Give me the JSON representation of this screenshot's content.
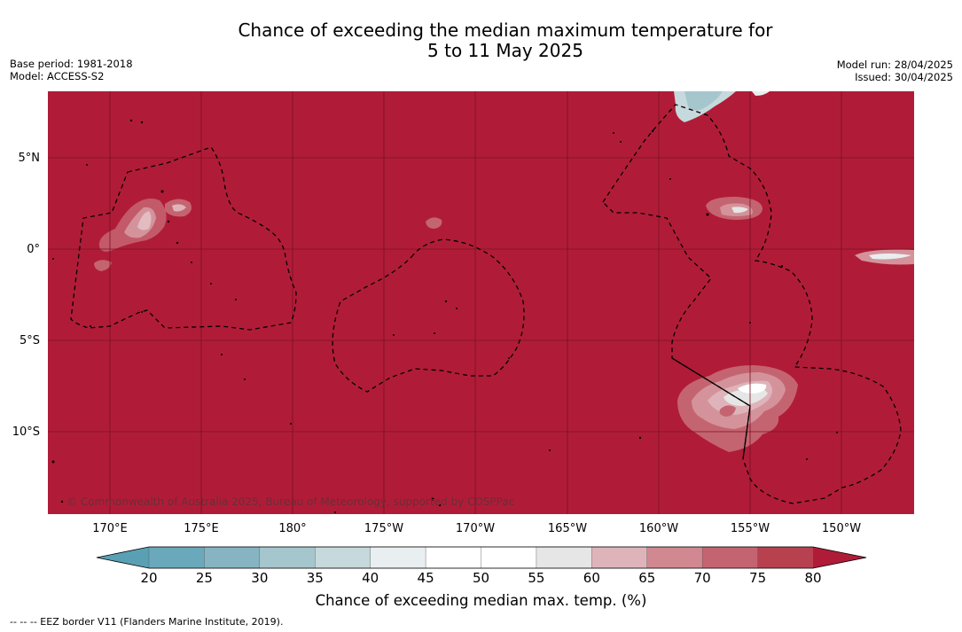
{
  "title_line1": "Chance of exceeding the median maximum temperature for",
  "title_line2": "5 to 11 May 2025",
  "meta_left": [
    "Base period: 1981-2018",
    "Model: ACCESS-S2"
  ],
  "meta_right": [
    "Model run: 28/04/2025",
    "Issued: 30/04/2025"
  ],
  "lon_labels": [
    "170°E",
    "175°E",
    "180°",
    "175°W",
    "170°W",
    "165°W",
    "160°W",
    "155°W",
    "150°W"
  ],
  "lat_labels": [
    "5°N",
    "0°",
    "5°S",
    "10°S"
  ],
  "credit": "© Commonwealth of Australia 2025, Bureau of Meteorology, supported by COSPPac",
  "colorbar": {
    "ticks": [
      "20",
      "25",
      "30",
      "35",
      "40",
      "45",
      "50",
      "55",
      "60",
      "65",
      "70",
      "75",
      "80"
    ],
    "colors": [
      "#6aa9bb",
      "#86b4c2",
      "#a6c6cd",
      "#c6d9dd",
      "#e9eef0",
      "#ffffff",
      "#ffffff",
      "#e6e6e6",
      "#deb4ba",
      "#d18890",
      "#c56471",
      "#b8414f"
    ],
    "under_color": "#5aa0b5",
    "over_color": "#b01c38",
    "label": "Chance of exceeding median max. temp. (%)"
  },
  "map_colors": {
    "background": "#b01c38",
    "grid": "#7a1024"
  },
  "eez_note": "--  --  -- EEZ border V11 (Flanders Marine Institute, 2019)."
}
